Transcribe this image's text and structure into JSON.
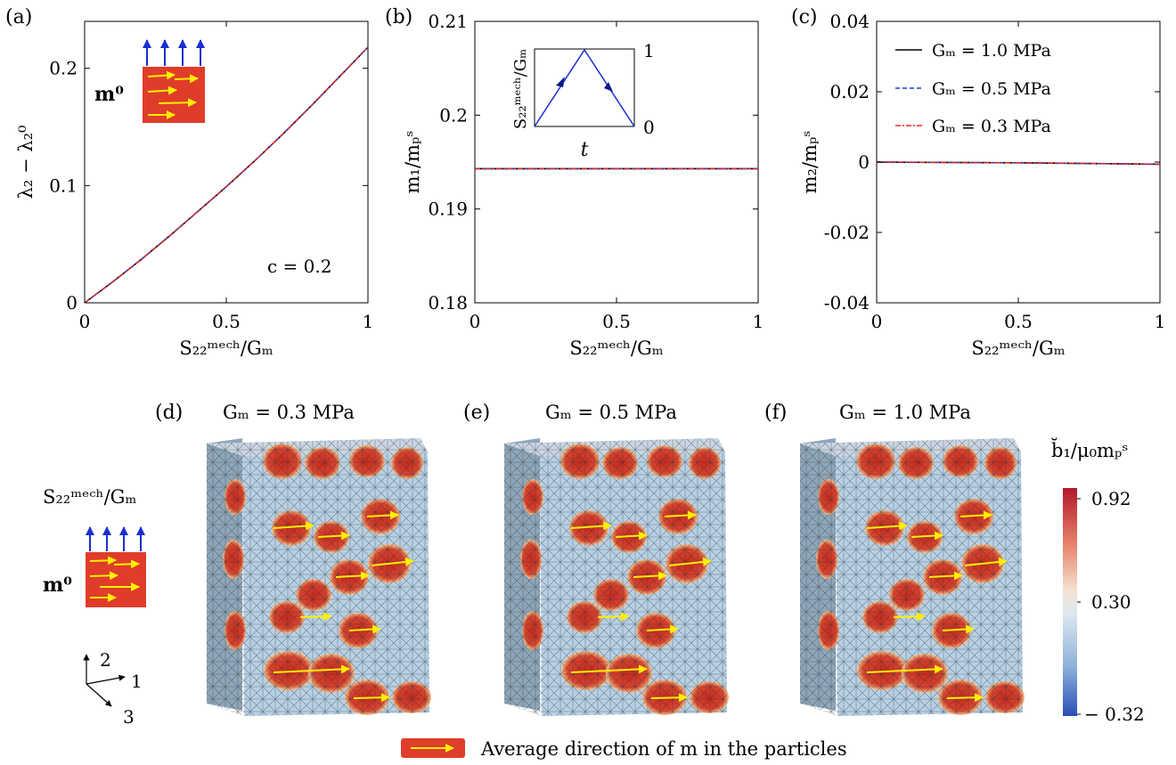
{
  "figure": {
    "panel_labels": [
      "(a)",
      "(b)",
      "(c)",
      "(d)",
      "(e)",
      "(f)"
    ],
    "colorbar": {
      "title": "b̆₁/μ₀mₚˢ",
      "ticks": [
        "0.92",
        "0.30",
        "− 0.32"
      ],
      "colors": [
        "#b2182b",
        "#e4eef6",
        "#2a52be"
      ]
    },
    "load_label": "S₂₂ᵐᵉᶜʰ/Gₘ",
    "m0_label": "m⁰",
    "axes_triad": [
      "2",
      "1",
      "3"
    ],
    "bottom_legend": "Average direction of m in the particles",
    "annotation_c": "c = 0.2",
    "inset_b": {
      "ylabel": "S₂₂ᵐᵉᶜʰ/Gₘ",
      "xlabel": "t",
      "top": "1",
      "bottom": "0"
    },
    "panels_3d": [
      {
        "label": "(d)",
        "title": "Gₘ = 0.3 MPa"
      },
      {
        "label": "(e)",
        "title": "Gₘ = 0.5 MPa"
      },
      {
        "label": "(f)",
        "title": "Gₘ = 1.0 MPa"
      }
    ],
    "colors": {
      "series_1": "#000000",
      "series_2": "#1f3bd6",
      "series_3": "#e8262b",
      "particle": "#d83a2a",
      "arrow": "#ffee00"
    }
  },
  "chart_data": [
    {
      "type": "line",
      "panel": "(a)",
      "xlabel": "S₂₂ᵐᵉᶜʰ/Gₘ",
      "ylabel": "λ₂ − λ₂⁰",
      "xlim": [
        0,
        1
      ],
      "ylim": [
        0,
        0.24
      ],
      "xticks": [
        "0",
        "0.5",
        "1"
      ],
      "yticks": [
        "0",
        "0.1",
        "0.2"
      ],
      "x": [
        0,
        0.1,
        0.2,
        0.3,
        0.4,
        0.5,
        0.6,
        0.7,
        0.8,
        0.9,
        1.0
      ],
      "series": [
        {
          "name": "Gₘ = 1.0 MPa",
          "values": [
            0,
            0.018,
            0.037,
            0.057,
            0.078,
            0.099,
            0.121,
            0.144,
            0.168,
            0.193,
            0.218
          ]
        },
        {
          "name": "Gₘ = 0.5 MPa",
          "values": [
            0,
            0.018,
            0.037,
            0.057,
            0.078,
            0.099,
            0.121,
            0.144,
            0.168,
            0.193,
            0.218
          ]
        },
        {
          "name": "Gₘ = 0.3 MPa",
          "values": [
            0,
            0.018,
            0.037,
            0.057,
            0.078,
            0.099,
            0.121,
            0.144,
            0.168,
            0.193,
            0.218
          ]
        }
      ]
    },
    {
      "type": "line",
      "panel": "(b)",
      "xlabel": "S₂₂ᵐᵉᶜʰ/Gₘ",
      "ylabel": "m₁/mₚˢ",
      "xlim": [
        0,
        1
      ],
      "ylim": [
        0.18,
        0.21
      ],
      "xticks": [
        "0",
        "0.5",
        "1"
      ],
      "yticks": [
        "0.18",
        "0.19",
        "0.2",
        "0.21"
      ],
      "x": [
        0,
        0.5,
        1.0
      ],
      "series": [
        {
          "name": "Gₘ = 1.0 MPa",
          "values": [
            0.1943,
            0.1943,
            0.1943
          ]
        },
        {
          "name": "Gₘ = 0.5 MPa",
          "values": [
            0.1943,
            0.1943,
            0.1943
          ]
        },
        {
          "name": "Gₘ = 0.3 MPa",
          "values": [
            0.1943,
            0.1943,
            0.1943
          ]
        }
      ]
    },
    {
      "type": "line",
      "panel": "(c)",
      "xlabel": "S₂₂ᵐᵉᶜʰ/Gₘ",
      "ylabel": "m₂/mₚˢ",
      "xlim": [
        0,
        1
      ],
      "ylim": [
        -0.04,
        0.04
      ],
      "xticks": [
        "0",
        "0.5",
        "1"
      ],
      "yticks": [
        "-0.04",
        "-0.02",
        "0",
        "0.02",
        "0.04"
      ],
      "legend": "top-right",
      "x": [
        0,
        0.5,
        1.0
      ],
      "series": [
        {
          "name": "Gₘ = 1.0 MPa",
          "values": [
            0,
            -0.0002,
            -0.0006
          ]
        },
        {
          "name": "Gₘ = 0.5 MPa",
          "values": [
            0,
            -0.0002,
            -0.0006
          ]
        },
        {
          "name": "Gₘ = 0.3 MPa",
          "values": [
            0,
            -0.0002,
            -0.0006
          ]
        }
      ]
    }
  ]
}
